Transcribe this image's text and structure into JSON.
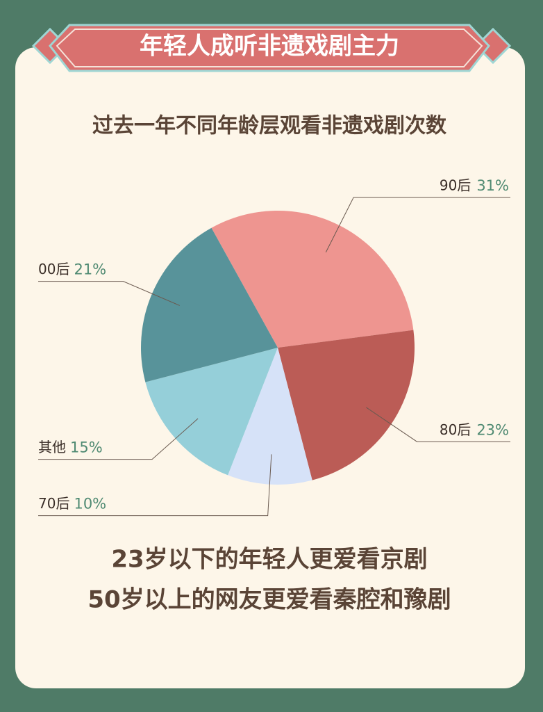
{
  "chart_data": {
    "type": "pie",
    "title": "年轻人成听非遗戏剧主力",
    "subtitle": "过去一年不同年龄层观看非遗戏剧次数",
    "categories": [
      "90后",
      "80后",
      "70后",
      "其他",
      "00后"
    ],
    "values": [
      31,
      23,
      10,
      15,
      21
    ],
    "value_labels": [
      "31%",
      "23%",
      "10%",
      "15%",
      "21%"
    ],
    "colors": [
      "#ee9590",
      "#bb5c56",
      "#d6e2f8",
      "#95cfd9",
      "#58939a"
    ],
    "annotations": [
      "23岁以下的年轻人更爱看京剧",
      "50岁以上的网友更爱看秦腔和豫剧"
    ]
  }
}
